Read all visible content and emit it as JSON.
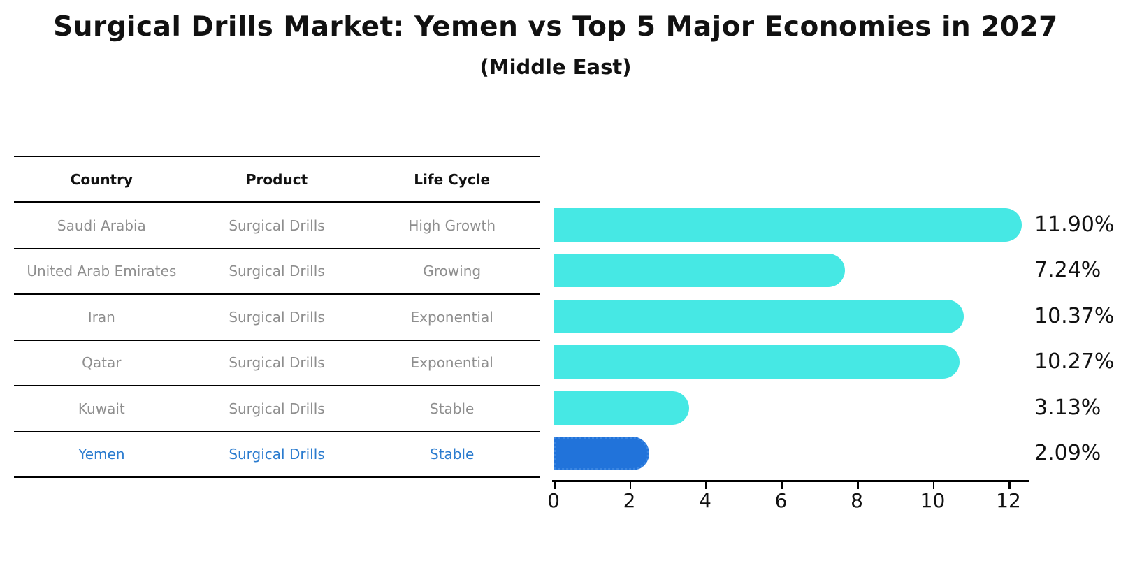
{
  "title": "Surgical Drills Market: Yemen vs Top 5 Major Economies in 2027",
  "subtitle": "(Middle East)",
  "table": {
    "headers": [
      "Country",
      "Product",
      "Life Cycle"
    ],
    "rows": [
      {
        "country": "Saudi Arabia",
        "product": "Surgical Drills",
        "life_cycle": "High Growth",
        "highlight": false
      },
      {
        "country": "United Arab Emirates",
        "product": "Surgical Drills",
        "life_cycle": "Growing",
        "highlight": false
      },
      {
        "country": "Iran",
        "product": "Surgical Drills",
        "life_cycle": "Exponential",
        "highlight": false
      },
      {
        "country": "Qatar",
        "product": "Surgical Drills",
        "life_cycle": "Exponential",
        "highlight": false
      },
      {
        "country": "Kuwait",
        "product": "Surgical Drills",
        "life_cycle": "Stable",
        "highlight": false
      },
      {
        "country": "Yemen",
        "product": "Surgical Drills",
        "life_cycle": "Stable",
        "highlight": true
      }
    ]
  },
  "chart_data": {
    "type": "bar",
    "orientation": "horizontal",
    "title": "Surgical Drills Market: Yemen vs Top 5 Major Economies in 2027",
    "subtitle": "(Middle East)",
    "categories": [
      "Saudi Arabia",
      "United Arab Emirates",
      "Iran",
      "Qatar",
      "Kuwait",
      "Yemen"
    ],
    "values": [
      11.9,
      7.24,
      10.37,
      10.27,
      3.13,
      2.09
    ],
    "value_labels": [
      "11.90%",
      "7.24%",
      "10.37%",
      "10.27%",
      "3.13%",
      "2.09%"
    ],
    "unit": "%",
    "x_ticks": [
      0,
      2,
      4,
      6,
      8,
      10,
      12
    ],
    "xlim": [
      0,
      12.5
    ],
    "grid": false,
    "legend": false,
    "highlight_category": "Yemen",
    "colors": {
      "bar": "#46e8e4",
      "highlight_bar": "#2173da",
      "highlight_border": "#3a86e2",
      "highlight_text": "#2b7ccf",
      "table_text": "#8e8e8e",
      "label_text": "#111111"
    }
  }
}
